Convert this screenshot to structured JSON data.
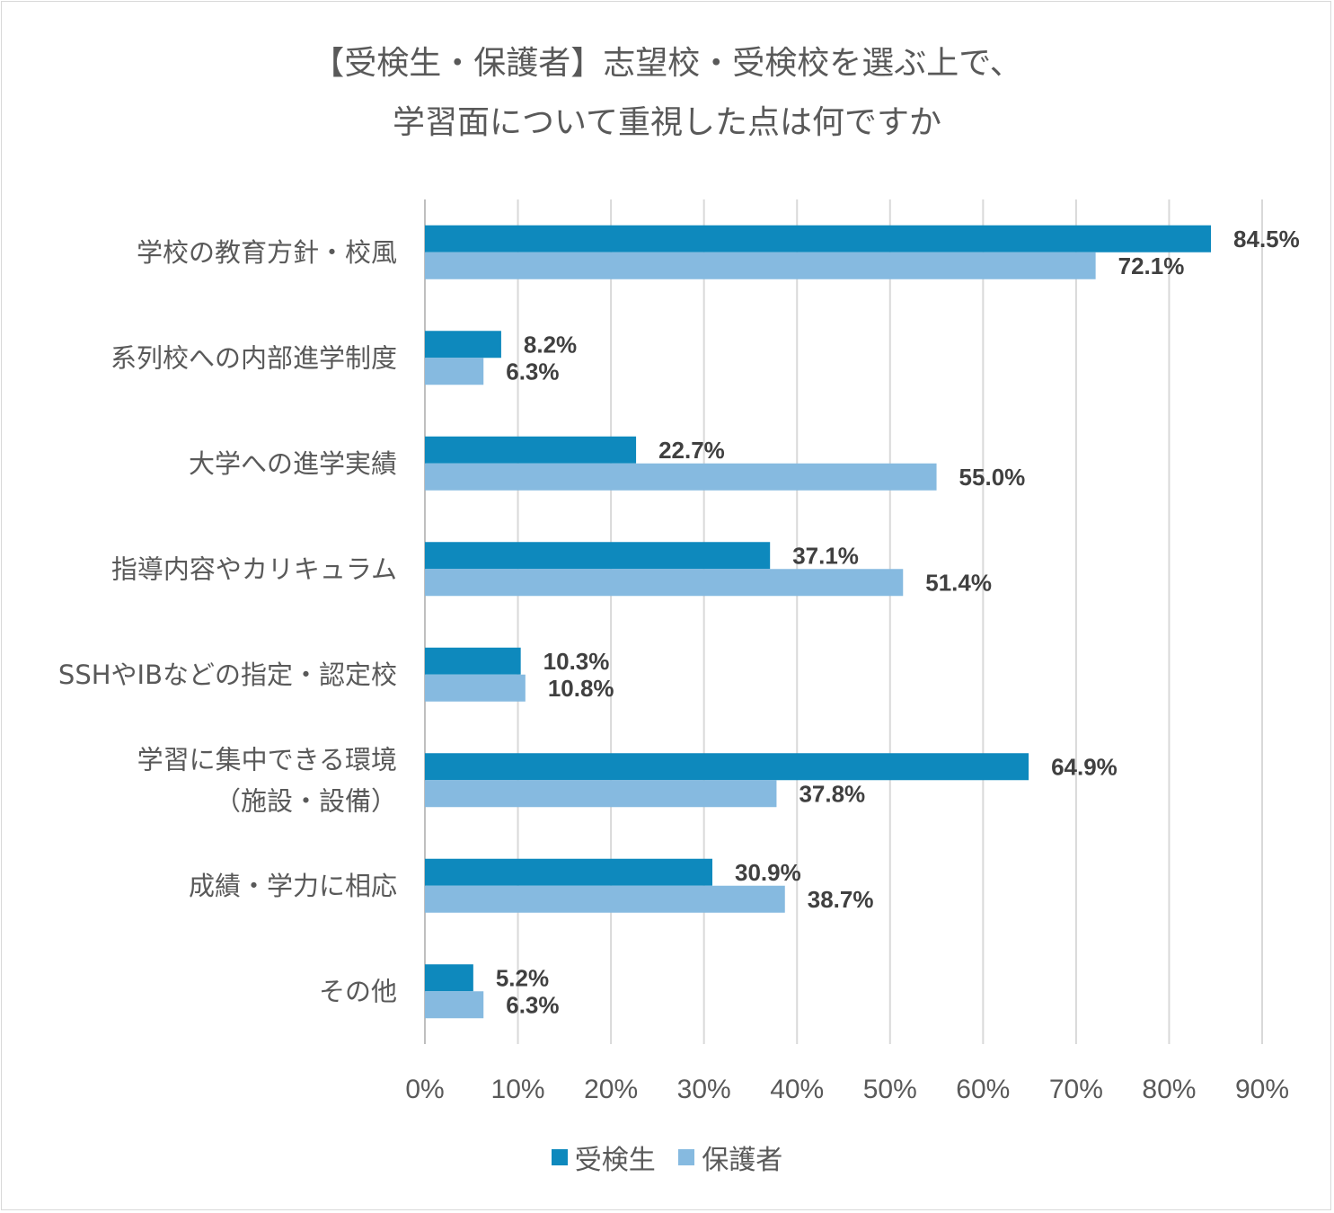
{
  "chart_data": {
    "type": "bar",
    "orientation": "horizontal",
    "title_lines": [
      "【受検生・保護者】志望校・受検校を選ぶ上で、",
      "学習面について重視した点は何ですか"
    ],
    "categories": [
      [
        "学校の教育方針・校風"
      ],
      [
        "系列校への内部進学制度"
      ],
      [
        "大学への進学実績"
      ],
      [
        "指導内容やカリキュラム"
      ],
      [
        "SSHやIBなどの指定・認定校"
      ],
      [
        "学習に集中できる環境",
        "（施設・設備）"
      ],
      [
        "成績・学力に相応"
      ],
      [
        "その他"
      ]
    ],
    "series": [
      {
        "name": "受検生",
        "color": "#0e89bd",
        "values": [
          84.5,
          8.2,
          22.7,
          37.1,
          10.3,
          64.9,
          30.9,
          5.2
        ]
      },
      {
        "name": "保護者",
        "color": "#86bae0",
        "values": [
          72.1,
          6.3,
          55.0,
          51.4,
          10.8,
          37.8,
          38.7,
          6.3
        ]
      }
    ],
    "value_labels": [
      [
        "84.5%",
        "8.2%",
        "22.7%",
        "37.1%",
        "10.3%",
        "64.9%",
        "30.9%",
        "5.2%"
      ],
      [
        "72.1%",
        "6.3%",
        "55.0%",
        "51.4%",
        "10.8%",
        "37.8%",
        "38.7%",
        "6.3%"
      ]
    ],
    "xlim": [
      0,
      90
    ],
    "xticks": [
      0,
      10,
      20,
      30,
      40,
      50,
      60,
      70,
      80,
      90
    ],
    "xtick_labels": [
      "0%",
      "10%",
      "20%",
      "30%",
      "40%",
      "50%",
      "60%",
      "70%",
      "80%",
      "90%"
    ],
    "grid": true,
    "grid_color": "#d9d9d9",
    "legend_position": "bottom"
  }
}
